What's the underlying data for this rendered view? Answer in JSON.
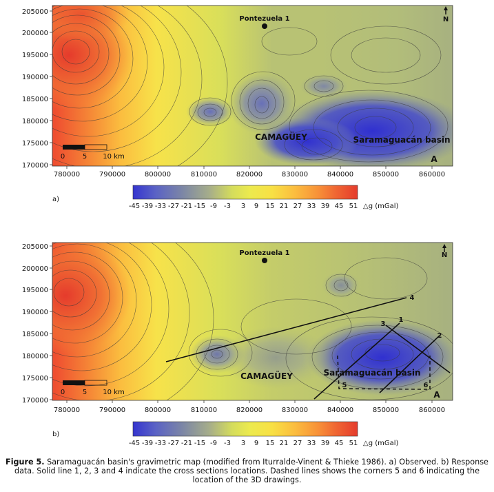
{
  "colors": {
    "ramp": [
      "#3535cf",
      "#5a62c5",
      "#7c86a6",
      "#a6ad8a",
      "#d4dc5c",
      "#ecea4e",
      "#f8e044",
      "#fbbd3f",
      "#f89338",
      "#f06833",
      "#e53b2c"
    ],
    "contour": "#3a3a3a",
    "line": "#111111"
  },
  "map_a": {
    "xticks": [
      "780000",
      "790000",
      "800000",
      "810000",
      "820000",
      "830000",
      "840000",
      "850000",
      "860000"
    ],
    "yticks": [
      "205000",
      "200000",
      "195000",
      "190000",
      "185000",
      "180000",
      "175000",
      "170000"
    ],
    "well_label": "Pontezuela 1",
    "city_label": "CAMAGÜEY",
    "basin_label": "Saramaguacán basin",
    "corner_label": "A",
    "north_label": "N",
    "scale_labels": [
      "0",
      "5",
      "10 km"
    ],
    "panel_label": "a)",
    "colorbar_ticks": [
      "-45",
      "-39",
      "-33",
      "-27",
      "-21",
      "-15",
      "-9",
      "-3",
      "3",
      "9",
      "15",
      "21",
      "27",
      "33",
      "39",
      "45",
      "51"
    ],
    "colorbar_unit": "△g (mGal)"
  },
  "map_b": {
    "xticks": [
      "780000",
      "790000",
      "800000",
      "810000",
      "820000",
      "830000",
      "840000",
      "850000",
      "860000"
    ],
    "yticks": [
      "205000",
      "200000",
      "195000",
      "190000",
      "185000",
      "180000",
      "175000",
      "170000"
    ],
    "well_label": "Pontezuela 1",
    "city_label": "CAMAGÜEY",
    "basin_label": "Saramaguacán basin",
    "corner_label": "A",
    "north_label": "N",
    "scale_labels": [
      "0",
      "5",
      "10 km"
    ],
    "panel_label": "b)",
    "section_labels": [
      "1",
      "2",
      "3",
      "4"
    ],
    "corner_labels": [
      "5",
      "6"
    ],
    "colorbar_ticks": [
      "-45",
      "-39",
      "-33",
      "-27",
      "-21",
      "-15",
      "-9",
      "-3",
      "3",
      "9",
      "15",
      "21",
      "27",
      "33",
      "39",
      "45",
      "51"
    ],
    "colorbar_unit": "△g (mGal)"
  },
  "caption": {
    "label": "Figure 5.",
    "text": " Saramaguacán basin's gravimetric map (modified from Iturralde-Vinent & Thieke 1986). a) Observed. b) Response data. Solid line 1, 2, 3 and 4 indicate the cross sections locations. Dashed lines shows the corners 5 and 6 indicating the location of the 3D drawings."
  }
}
